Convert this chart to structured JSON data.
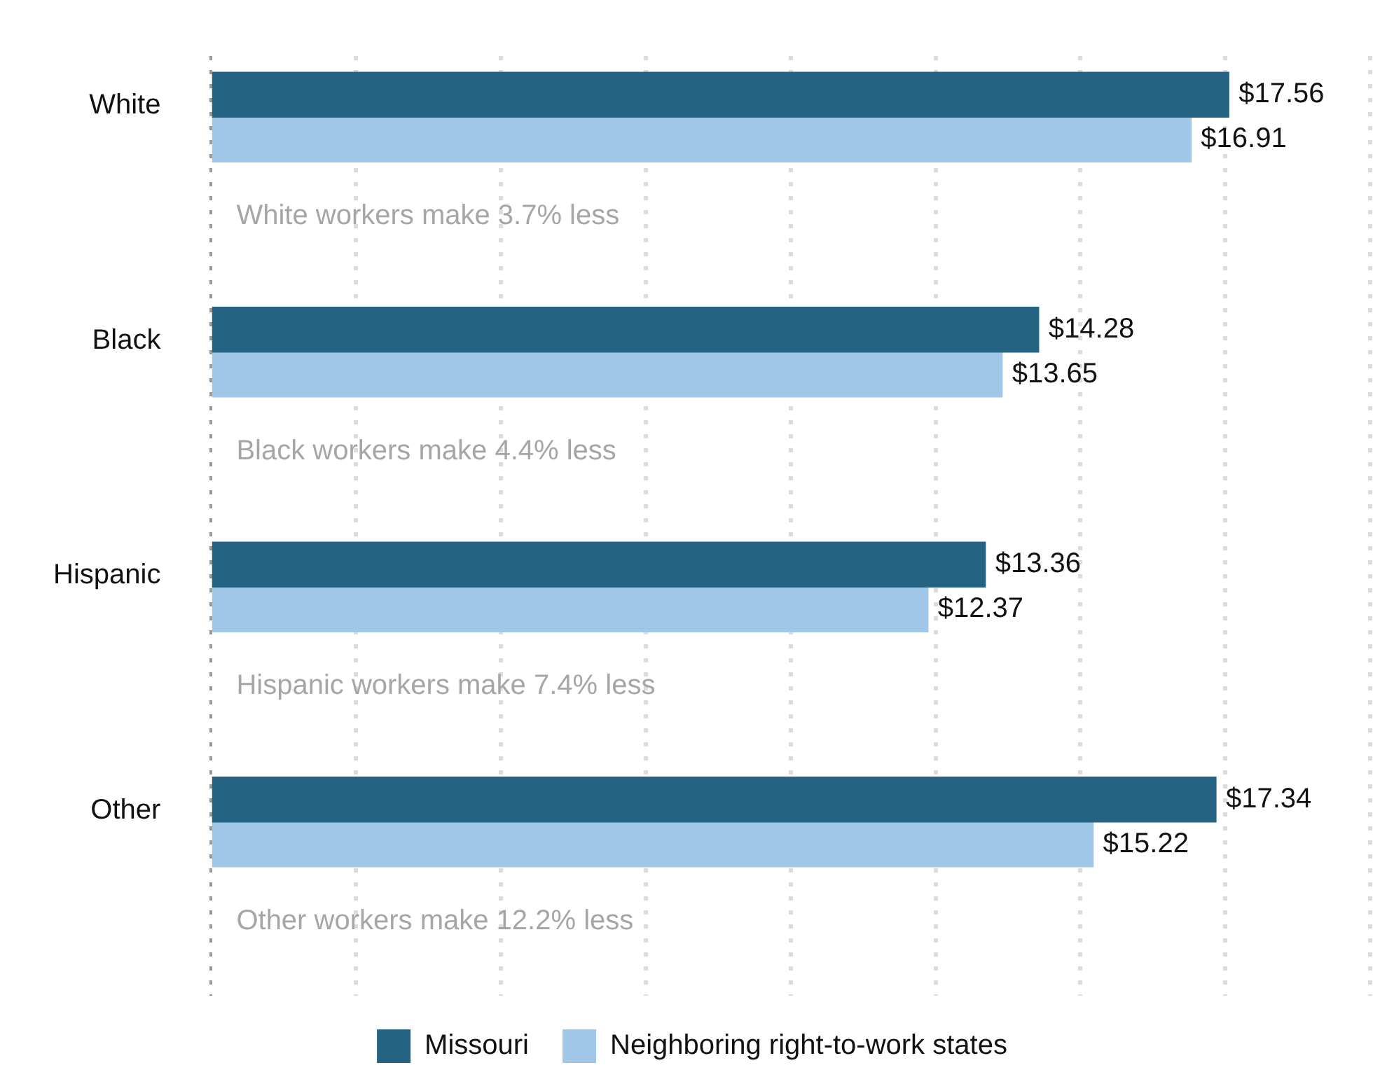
{
  "chart_data": {
    "type": "bar",
    "orientation": "horizontal",
    "categories": [
      "White",
      "Black",
      "Hispanic",
      "Other"
    ],
    "series": [
      {
        "name": "Missouri",
        "color": "#256383",
        "values": [
          17.56,
          14.28,
          13.36,
          17.34
        ],
        "value_labels": [
          "$17.56",
          "$14.28",
          "$13.36",
          "$17.34"
        ]
      },
      {
        "name": "Neighboring right-to-work states",
        "color": "#a0c7e8",
        "values": [
          16.91,
          13.65,
          12.37,
          15.22
        ],
        "value_labels": [
          "$16.91",
          "$13.65",
          "$12.37",
          "$15.22"
        ]
      }
    ],
    "xlim": [
      0,
      20
    ],
    "xticks": [
      0,
      {
        "value": 2.5,
        "label": null
      },
      {
        "value": 5,
        "label": null
      },
      {
        "value": 7.5,
        "label": null
      },
      {
        "value": 10,
        "label": null
      },
      {
        "value": 12.5,
        "label": null
      },
      {
        "value": 15,
        "label": null
      },
      {
        "value": 17.5,
        "label": null
      },
      {
        "value": 20,
        "label": null
      }
    ],
    "tick_labels": "y",
    "grid": "x",
    "legend": "bottom",
    "annotations": [
      "White workers make 3.7% less",
      "Black workers make 4.4% less",
      "Hispanic workers make 7.4% less",
      "Other workers make 12.2% less"
    ]
  }
}
